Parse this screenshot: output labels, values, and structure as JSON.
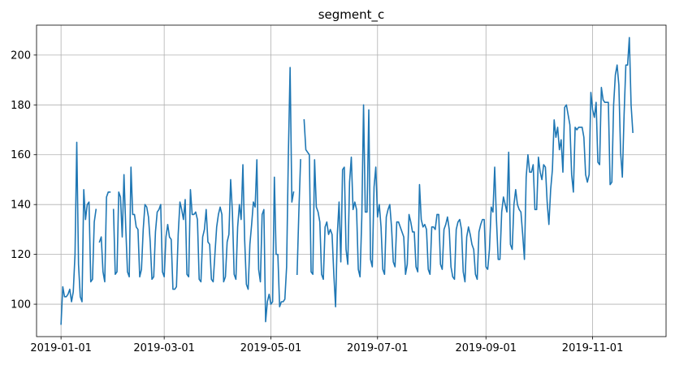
{
  "chart_data": {
    "type": "line",
    "title": "segment_c",
    "xlabel": "",
    "ylabel": "",
    "grid": true,
    "line_color": "#1f77b4",
    "x_start": "2019-01-01",
    "x_end": "2019-11-30",
    "xlim": [
      "2018-12-18",
      "2019-12-13"
    ],
    "ylim": [
      87,
      212
    ],
    "x_ticks": [
      "2019-01-01",
      "2019-03-01",
      "2019-05-01",
      "2019-07-01",
      "2019-09-01",
      "2019-11-01"
    ],
    "y_ticks": [
      100,
      120,
      140,
      160,
      180,
      200
    ],
    "series": [
      {
        "values": [
          92,
          107,
          103,
          103,
          104,
          106,
          101,
          105,
          120,
          165,
          116,
          103,
          101,
          146,
          134,
          140,
          141,
          109,
          110,
          133,
          138,
          null,
          125,
          127,
          113,
          109,
          143,
          145,
          145,
          null,
          138,
          112,
          113,
          145,
          143,
          127,
          152,
          131,
          113,
          111,
          155,
          136,
          136,
          131,
          130,
          111,
          114,
          130,
          140,
          139,
          135,
          125,
          110,
          111,
          129,
          137,
          138,
          140,
          113,
          111,
          127,
          132,
          127,
          126,
          106,
          106,
          107,
          128,
          141,
          138,
          134,
          142,
          112,
          111,
          146,
          136,
          136,
          137,
          134,
          110,
          109,
          127,
          130,
          138,
          125,
          124,
          110,
          109,
          120,
          131,
          136,
          139,
          136,
          109,
          111,
          125,
          128,
          150,
          137,
          112,
          110,
          131,
          140,
          134,
          156,
          126,
          108,
          106,
          124,
          132,
          141,
          139,
          158,
          114,
          109,
          136,
          138,
          93,
          101,
          104,
          100,
          101,
          151,
          120,
          120,
          99,
          101,
          101,
          102,
          115,
          160,
          195,
          141,
          145,
          null,
          112,
          137,
          158,
          null,
          174,
          162,
          161,
          160,
          113,
          112,
          158,
          139,
          137,
          133,
          112,
          110,
          131,
          133,
          128,
          130,
          128,
          112,
          99,
          128,
          141,
          117,
          154,
          155,
          122,
          116,
          149,
          159,
          138,
          141,
          138,
          114,
          111,
          135,
          180,
          137,
          137,
          178,
          118,
          115,
          147,
          155,
          135,
          140,
          131,
          114,
          112,
          135,
          138,
          140,
          131,
          117,
          115,
          133,
          133,
          131,
          129,
          127,
          112,
          116,
          136,
          133,
          129,
          129,
          115,
          113,
          148,
          134,
          131,
          132,
          130,
          114,
          112,
          131,
          131,
          130,
          136,
          136,
          116,
          114,
          130,
          132,
          135,
          130,
          115,
          111,
          110,
          130,
          133,
          134,
          130,
          113,
          109,
          127,
          131,
          128,
          124,
          122,
          112,
          110,
          129,
          132,
          134,
          134,
          115,
          114,
          122,
          139,
          137,
          155,
          134,
          118,
          118,
          137,
          143,
          140,
          137,
          161,
          124,
          122,
          140,
          146,
          140,
          138,
          137,
          128,
          118,
          151,
          160,
          153,
          153,
          156,
          138,
          138,
          159,
          153,
          150,
          156,
          155,
          141,
          132,
          146,
          154,
          174,
          167,
          171,
          162,
          166,
          153,
          179,
          180,
          176,
          172,
          152,
          145,
          171,
          170,
          171,
          171,
          171,
          167,
          152,
          149,
          152,
          185,
          178,
          175,
          181,
          157,
          156,
          187,
          182,
          181,
          181,
          181,
          148,
          149,
          180,
          192,
          196,
          188,
          161,
          151,
          176,
          196,
          196,
          207,
          180,
          169
        ]
      }
    ]
  }
}
